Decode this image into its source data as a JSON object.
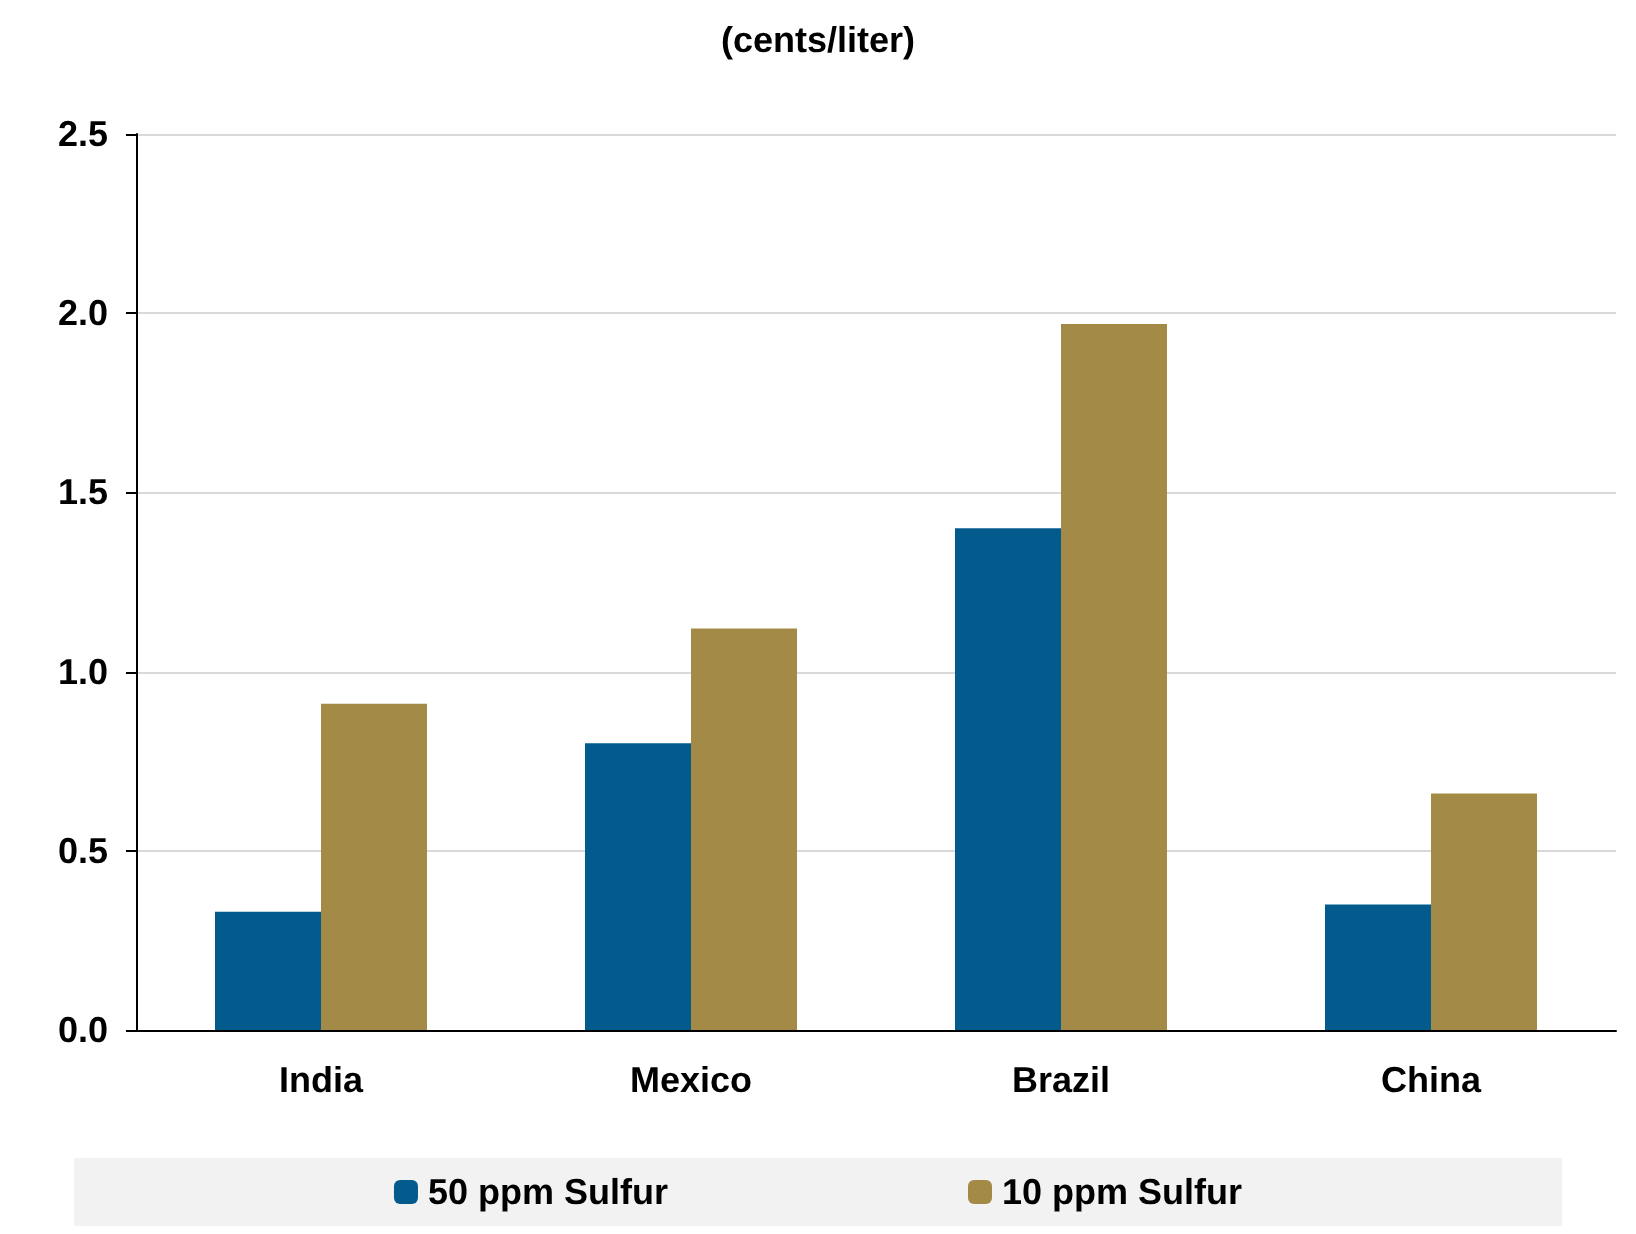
{
  "chart_data": {
    "type": "bar",
    "title": "(cents/liter)",
    "categories": [
      "India",
      "Mexico",
      "Brazil",
      "China"
    ],
    "series": [
      {
        "name": "50 ppm Sulfur",
        "color": "#035a8c",
        "values": [
          0.33,
          0.8,
          1.4,
          0.35
        ]
      },
      {
        "name": "10 ppm Sulfur",
        "color": "#a38b47",
        "values": [
          0.91,
          1.12,
          1.97,
          0.66
        ]
      }
    ],
    "ylim": [
      0,
      2.5
    ],
    "yticks": [
      {
        "value": 0,
        "label": "0.0"
      },
      0.5,
      {
        "value": 1,
        "label": "1.0"
      },
      1.5,
      {
        "value": 2,
        "label": "2.0"
      },
      2.5
    ],
    "grid": "y",
    "legend": "bottom"
  }
}
